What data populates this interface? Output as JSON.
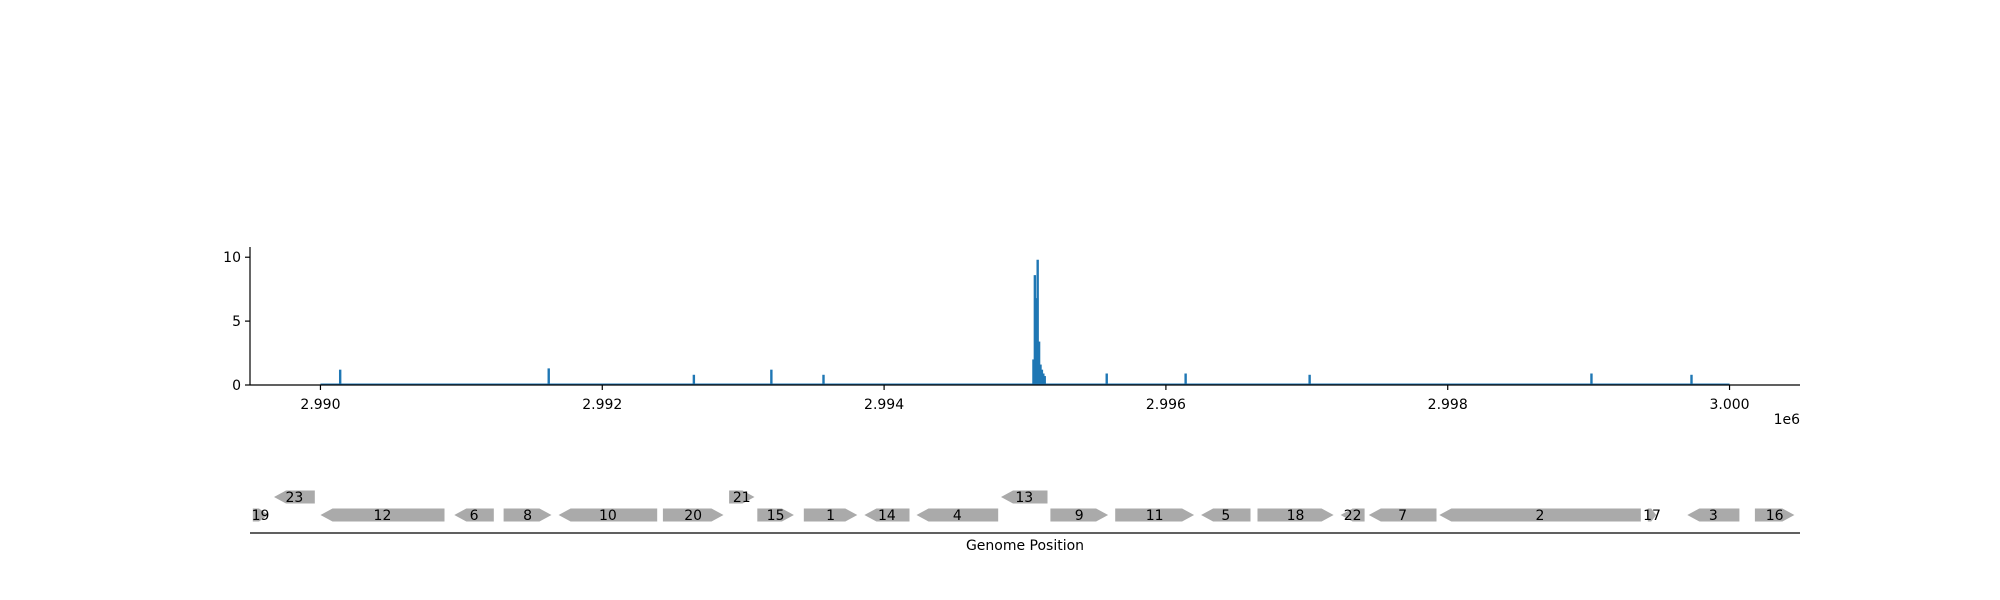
{
  "chart_data": [
    {
      "type": "bar",
      "xlim": [
        2989500,
        3000500
      ],
      "ylim": [
        0,
        10.8
      ],
      "x_offset_label": "1e6",
      "x_ticks": [
        {
          "value": 2990000,
          "label": "2.990"
        },
        {
          "value": 2992000,
          "label": "2.992"
        },
        {
          "value": 2994000,
          "label": "2.994"
        },
        {
          "value": 2996000,
          "label": "2.996"
        },
        {
          "value": 2998000,
          "label": "2.998"
        },
        {
          "value": 3000000,
          "label": "3.000"
        }
      ],
      "y_ticks": [
        {
          "value": 0,
          "label": "0"
        },
        {
          "value": 5,
          "label": "5"
        },
        {
          "value": 10,
          "label": "10"
        }
      ],
      "baseline": {
        "start": 2990000,
        "end": 3000000
      },
      "color": "#1f77b4",
      "grid": false,
      "points": [
        {
          "x": 2990140,
          "y": 1.2
        },
        {
          "x": 2991620,
          "y": 1.3
        },
        {
          "x": 2992650,
          "y": 0.8
        },
        {
          "x": 2993200,
          "y": 1.2
        },
        {
          "x": 2993570,
          "y": 0.8
        },
        {
          "x": 2995060,
          "y": 2.0
        },
        {
          "x": 2995070,
          "y": 8.6
        },
        {
          "x": 2995080,
          "y": 6.8
        },
        {
          "x": 2995090,
          "y": 9.8
        },
        {
          "x": 2995100,
          "y": 3.4
        },
        {
          "x": 2995110,
          "y": 1.6
        },
        {
          "x": 2995120,
          "y": 1.2
        },
        {
          "x": 2995130,
          "y": 0.9
        },
        {
          "x": 2995140,
          "y": 0.7
        },
        {
          "x": 2995580,
          "y": 0.9
        },
        {
          "x": 2996140,
          "y": 0.9
        },
        {
          "x": 2997020,
          "y": 0.8
        },
        {
          "x": 2999020,
          "y": 0.9
        },
        {
          "x": 2999730,
          "y": 0.8
        }
      ]
    },
    {
      "type": "gene-map",
      "xlabel": "Genome Position",
      "color": "#aaaaaa",
      "genes": [
        {
          "label": "19",
          "start": 2989520,
          "end": 2989630,
          "strand": "+",
          "row": 0
        },
        {
          "label": "12",
          "start": 2990000,
          "end": 2990880,
          "strand": "-",
          "row": 0
        },
        {
          "label": "6",
          "start": 2990950,
          "end": 2991230,
          "strand": "-",
          "row": 0
        },
        {
          "label": "8",
          "start": 2991300,
          "end": 2991640,
          "strand": "+",
          "row": 0
        },
        {
          "label": "10",
          "start": 2991690,
          "end": 2992390,
          "strand": "-",
          "row": 0
        },
        {
          "label": "20",
          "start": 2992430,
          "end": 2992860,
          "strand": "+",
          "row": 0
        },
        {
          "label": "15",
          "start": 2993100,
          "end": 2993360,
          "strand": "+",
          "row": 0
        },
        {
          "label": "1",
          "start": 2993430,
          "end": 2993810,
          "strand": "+",
          "row": 0
        },
        {
          "label": "14",
          "start": 2993860,
          "end": 2994180,
          "strand": "-",
          "row": 0
        },
        {
          "label": "4",
          "start": 2994230,
          "end": 2994810,
          "strand": "-",
          "row": 0
        },
        {
          "label": "9",
          "start": 2995180,
          "end": 2995590,
          "strand": "+",
          "row": 0
        },
        {
          "label": "11",
          "start": 2995640,
          "end": 2996200,
          "strand": "+",
          "row": 0
        },
        {
          "label": "5",
          "start": 2996250,
          "end": 2996600,
          "strand": "-",
          "row": 0
        },
        {
          "label": "18",
          "start": 2996650,
          "end": 2997190,
          "strand": "+",
          "row": 0
        },
        {
          "label": "22",
          "start": 2997240,
          "end": 2997410,
          "strand": "-",
          "row": 0
        },
        {
          "label": "7",
          "start": 2997440,
          "end": 2997920,
          "strand": "-",
          "row": 0
        },
        {
          "label": "2",
          "start": 2997940,
          "end": 2999370,
          "strand": "-",
          "row": 0
        },
        {
          "label": "17",
          "start": 2999420,
          "end": 2999480,
          "strand": "+",
          "row": 0
        },
        {
          "label": "3",
          "start": 2999700,
          "end": 3000070,
          "strand": "-",
          "row": 0
        },
        {
          "label": "16",
          "start": 3000180,
          "end": 3000460,
          "strand": "+",
          "row": 0
        },
        {
          "label": "23",
          "start": 2989670,
          "end": 2989960,
          "strand": "-",
          "row": 1
        },
        {
          "label": "21",
          "start": 2992900,
          "end": 2993080,
          "strand": "+",
          "row": 1
        },
        {
          "label": "13",
          "start": 2994830,
          "end": 2995160,
          "strand": "-",
          "row": 1
        }
      ]
    }
  ]
}
